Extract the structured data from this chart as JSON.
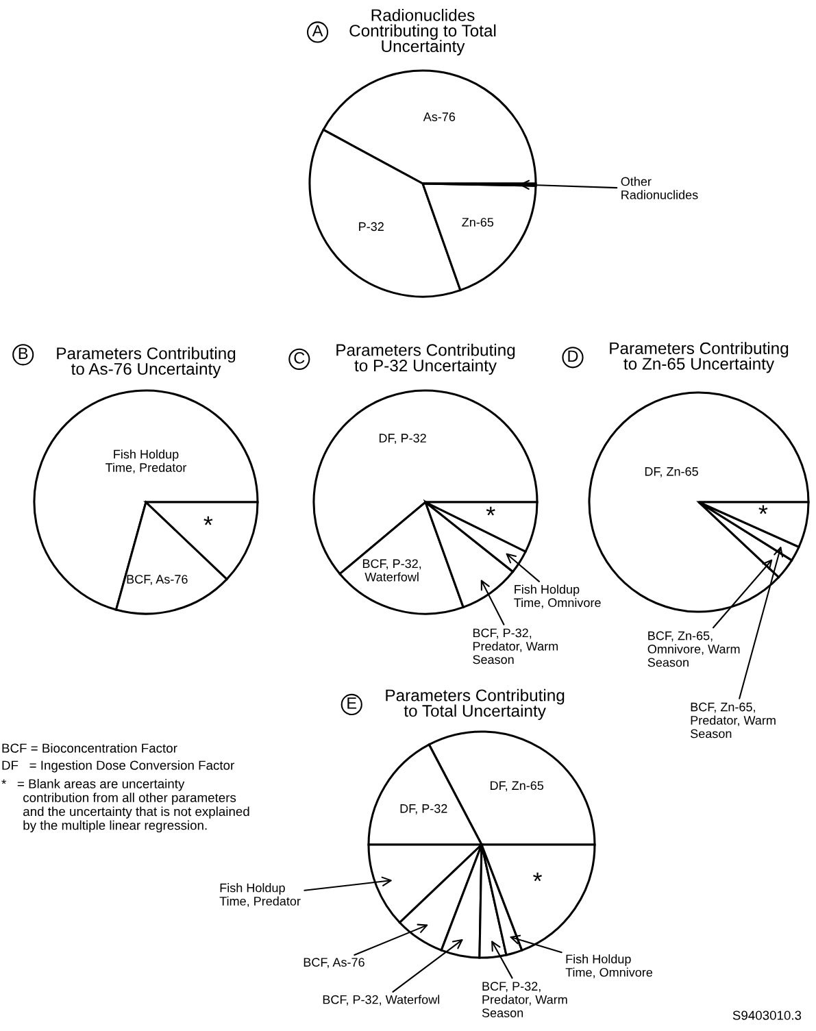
{
  "chart_data": [
    {
      "type": "pie",
      "title": "Radionuclides\nContributing to Total\nUncertainty",
      "annotations": [
        "A"
      ],
      "categories": [
        "As-76",
        "P-32",
        "Zn-65",
        "Other\nRadionuclides"
      ],
      "values": [
        42.1,
        38.3,
        19.3,
        0.3
      ],
      "colors": [
        "#ffffff",
        "#ffffff",
        "#ffffff",
        "#ffffff"
      ]
    },
    {
      "type": "pie",
      "title": "Parameters Contributing\nto As-76 Uncertainty",
      "annotations": [
        "B"
      ],
      "categories": [
        "Fish Holdup\nTime, Predator",
        "BCF, As-76",
        "*"
      ],
      "values": [
        70.7,
        17.2,
        12.1
      ],
      "colors": [
        "#ffffff",
        "#ffffff",
        "#ffffff"
      ]
    },
    {
      "type": "pie",
      "title": "Parameters Contributing\nto P-32 Uncertainty",
      "annotations": [
        "C"
      ],
      "categories": [
        "DF, P-32",
        "BCF, P-32,\nWaterfowl",
        "BCF, P-32,\nPredator, Warm\nSeason",
        "Fish Holdup\nTime, Omnivore",
        "*"
      ],
      "values": [
        61.1,
        19.4,
        8.8,
        3.4,
        7.3
      ],
      "colors": [
        "#ffffff",
        "#ffffff",
        "#ffffff",
        "#ffffff",
        "#ffffff"
      ]
    },
    {
      "type": "pie",
      "title": "Parameters Contributing\nto Zn-65 Uncertainty",
      "annotations": [
        "D"
      ],
      "categories": [
        "DF, Zn-65",
        "BCF, Zn-65,\nOmnivore, Warm\nSeason",
        "BCF, Zn-65,\nPredator, Warm\nSeason",
        "*"
      ],
      "values": [
        88.0,
        3.1,
        2.2,
        6.7
      ],
      "colors": [
        "#ffffff",
        "#ffffff",
        "#ffffff",
        "#ffffff"
      ]
    },
    {
      "type": "pie",
      "title": "Parameters Contributing\nto Total Uncertainty",
      "annotations": [
        "E",
        "BCF = Bioconcentration Factor",
        "DF   = Ingestion Dose Conversion Factor",
        "*   = Blank areas are uncertainty\n      contribution from all other parameters\n      and the uncertainty that is not explained\n      by the multiple linear regression.",
        "S9403010.3"
      ],
      "categories": [
        "DF, Zn-65",
        "DF, P-32",
        "Fish Holdup\nTime, Predator",
        "BCF, As-76",
        "BCF, P-32, Waterfowl",
        "BCF, P-32,\nPredator, Warm\nSeason",
        "Fish Holdup\nTime, Omnivore",
        "*"
      ],
      "values": [
        32.7,
        17.3,
        12.1,
        7.1,
        5.5,
        3.8,
        2.3,
        19.2
      ],
      "colors": [
        "#ffffff",
        "#ffffff",
        "#ffffff",
        "#ffffff",
        "#ffffff",
        "#ffffff",
        "#ffffff",
        "#ffffff"
      ]
    }
  ]
}
